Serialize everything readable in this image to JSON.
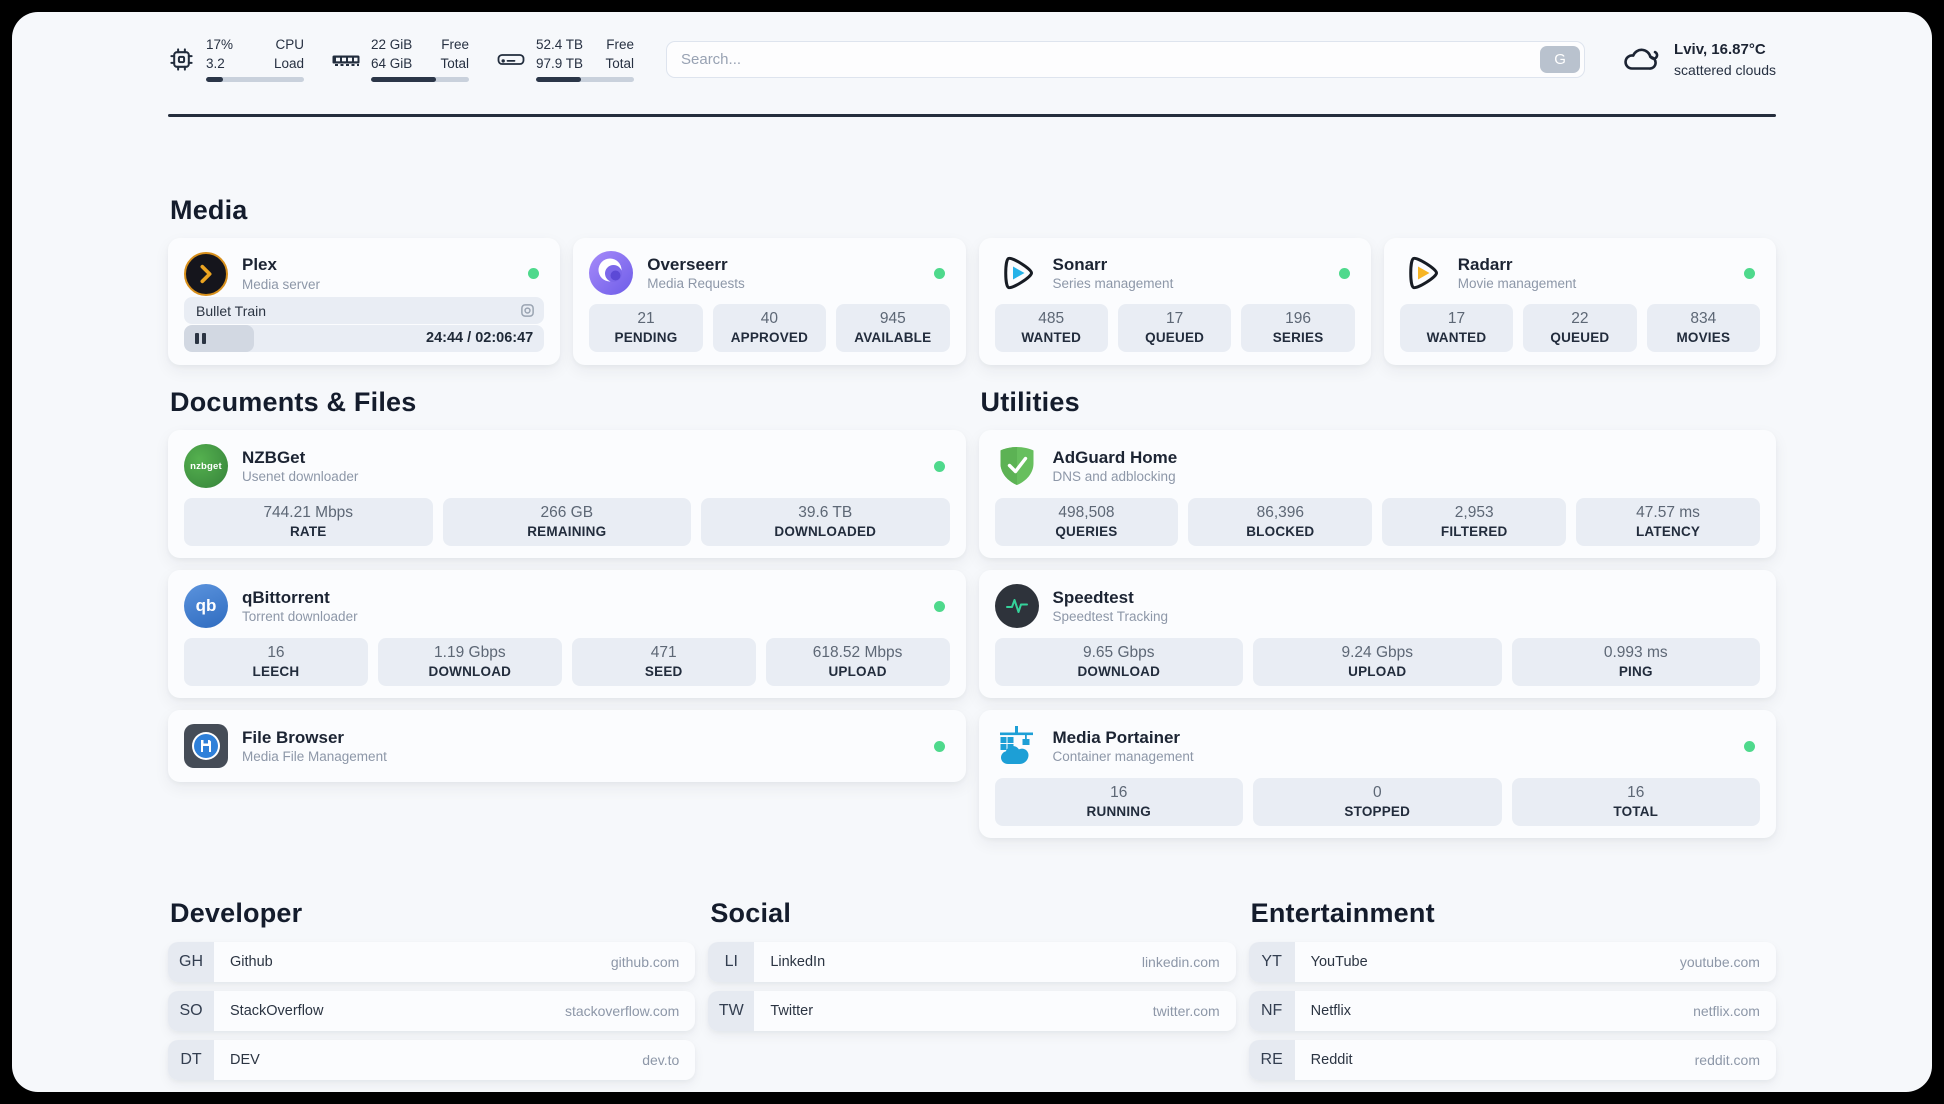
{
  "theme": {
    "page_background": "#f6f8fb",
    "card_background": "#fbfcfe",
    "stat_background": "#e9edf4",
    "status_online": "#4ed98c",
    "progress_fill": "#2b3648",
    "divider": "#252e3d",
    "text_dark": "#1c2433",
    "text_muted": "#8d97a8"
  },
  "header": {
    "system_widgets": [
      {
        "id": "cpu",
        "icon": "cpu-icon",
        "line1_left": "17%",
        "line2_left": "3.2",
        "line1_right": "CPU",
        "line2_right": "Load",
        "progress_percent": 17
      },
      {
        "id": "memory",
        "icon": "ram-icon",
        "line1_left": "22 GiB",
        "line2_left": "64 GiB",
        "line1_right": "Free",
        "line2_right": "Total",
        "progress_percent": 66
      },
      {
        "id": "disk",
        "icon": "disk-icon",
        "line1_left": "52.4 TB",
        "line2_left": "97.9 TB",
        "line1_right": "Free",
        "line2_right": "Total",
        "progress_percent": 46
      }
    ],
    "search": {
      "placeholder": "Search...",
      "button_label": "G"
    },
    "weather": {
      "icon": "cloud-icon",
      "location": "Lviv, 16.87°C",
      "condition": "scattered clouds"
    }
  },
  "sections": {
    "media": {
      "title": "Media",
      "plex": {
        "name": "Plex",
        "description": "Media server",
        "online": true,
        "now_playing": "Bullet Train",
        "time_display": "24:44 / 02:06:47",
        "progress_percent": 19.5
      },
      "overseerr": {
        "name": "Overseerr",
        "description": "Media Requests",
        "online": true,
        "stats": [
          {
            "value": "21",
            "label": "PENDING"
          },
          {
            "value": "40",
            "label": "APPROVED"
          },
          {
            "value": "945",
            "label": "AVAILABLE"
          }
        ]
      },
      "sonarr": {
        "name": "Sonarr",
        "description": "Series management",
        "online": true,
        "stats": [
          {
            "value": "485",
            "label": "WANTED"
          },
          {
            "value": "17",
            "label": "QUEUED"
          },
          {
            "value": "196",
            "label": "SERIES"
          }
        ]
      },
      "radarr": {
        "name": "Radarr",
        "description": "Movie management",
        "online": true,
        "stats": [
          {
            "value": "17",
            "label": "WANTED"
          },
          {
            "value": "22",
            "label": "QUEUED"
          },
          {
            "value": "834",
            "label": "MOVIES"
          }
        ]
      }
    },
    "documents": {
      "title": "Documents & Files",
      "nzbget": {
        "name": "NZBGet",
        "description": "Usenet downloader",
        "online": true,
        "stats": [
          {
            "value": "744.21 Mbps",
            "label": "RATE"
          },
          {
            "value": "266 GB",
            "label": "REMAINING"
          },
          {
            "value": "39.6 TB",
            "label": "DOWNLOADED"
          }
        ]
      },
      "qbittorrent": {
        "name": "qBittorrent",
        "description": "Torrent downloader",
        "online": true,
        "stats": [
          {
            "value": "16",
            "label": "LEECH"
          },
          {
            "value": "1.19 Gbps",
            "label": "DOWNLOAD"
          },
          {
            "value": "471",
            "label": "SEED"
          },
          {
            "value": "618.52 Mbps",
            "label": "UPLOAD"
          }
        ]
      },
      "filebrowser": {
        "name": "File Browser",
        "description": "Media File Management",
        "online": true
      }
    },
    "utilities": {
      "title": "Utilities",
      "adguard": {
        "name": "AdGuard Home",
        "description": "DNS and adblocking",
        "stats": [
          {
            "value": "498,508",
            "label": "QUERIES"
          },
          {
            "value": "86,396",
            "label": "BLOCKED"
          },
          {
            "value": "2,953",
            "label": "FILTERED"
          },
          {
            "value": "47.57 ms",
            "label": "LATENCY"
          }
        ]
      },
      "speedtest": {
        "name": "Speedtest",
        "description": "Speedtest Tracking",
        "stats": [
          {
            "value": "9.65 Gbps",
            "label": "DOWNLOAD"
          },
          {
            "value": "9.24 Gbps",
            "label": "UPLOAD"
          },
          {
            "value": "0.993 ms",
            "label": "PING"
          }
        ]
      },
      "portainer": {
        "name": "Media Portainer",
        "description": "Container management",
        "online": true,
        "stats": [
          {
            "value": "16",
            "label": "RUNNING"
          },
          {
            "value": "0",
            "label": "STOPPED"
          },
          {
            "value": "16",
            "label": "TOTAL"
          }
        ]
      }
    },
    "bookmark_groups": [
      {
        "title": "Developer",
        "items": [
          {
            "abbr": "GH",
            "name": "Github",
            "url": "github.com"
          },
          {
            "abbr": "SO",
            "name": "StackOverflow",
            "url": "stackoverflow.com"
          },
          {
            "abbr": "DT",
            "name": "DEV",
            "url": "dev.to"
          }
        ]
      },
      {
        "title": "Social",
        "items": [
          {
            "abbr": "LI",
            "name": "LinkedIn",
            "url": "linkedin.com"
          },
          {
            "abbr": "TW",
            "name": "Twitter",
            "url": "twitter.com"
          }
        ]
      },
      {
        "title": "Entertainment",
        "items": [
          {
            "abbr": "YT",
            "name": "YouTube",
            "url": "youtube.com"
          },
          {
            "abbr": "NF",
            "name": "Netflix",
            "url": "netflix.com"
          },
          {
            "abbr": "RE",
            "name": "Reddit",
            "url": "reddit.com"
          }
        ]
      }
    ]
  }
}
